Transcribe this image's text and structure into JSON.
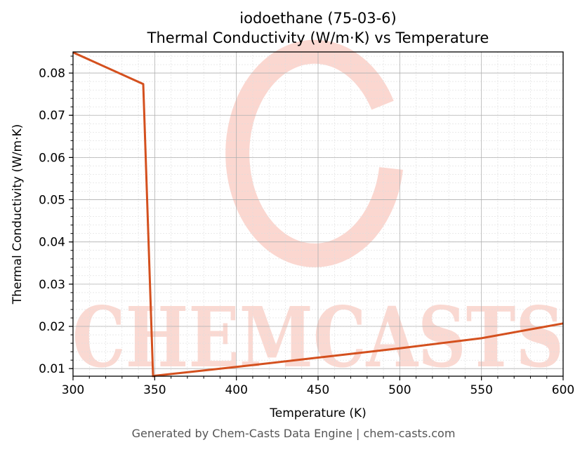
{
  "chart_data": {
    "type": "line",
    "title_line1": "iodoethane (75-03-6)",
    "title_line2": "Thermal Conductivity (W/m·K) vs Temperature",
    "xlabel": "Temperature (K)",
    "ylabel": "Thermal Conductivity (W/m·K)",
    "xlim": [
      300,
      600
    ],
    "ylim": [
      0.0082,
      0.085
    ],
    "x_ticks": [
      300,
      350,
      400,
      450,
      500,
      550,
      600
    ],
    "x_tick_labels": [
      "300",
      "350",
      "400",
      "450",
      "500",
      "550",
      "600"
    ],
    "y_ticks": [
      0.01,
      0.02,
      0.03,
      0.04,
      0.05,
      0.06,
      0.07,
      0.08
    ],
    "y_tick_labels": [
      "0.01",
      "0.02",
      "0.03",
      "0.04",
      "0.05",
      "0.06",
      "0.07",
      "0.08"
    ],
    "grid": true,
    "line_color": "#d4501e",
    "series": [
      {
        "x": [
          300,
          343,
          349,
          350,
          400,
          450,
          500,
          550,
          600
        ],
        "y": [
          0.0849,
          0.0774,
          0.0082,
          0.0083,
          0.0104,
          0.0126,
          0.0148,
          0.0172,
          0.0207
        ]
      }
    ]
  },
  "watermark": {
    "text": "CHEMCASTS",
    "color": "#f9c9c0"
  },
  "footer": "Generated by Chem-Casts Data Engine | chem-casts.com"
}
